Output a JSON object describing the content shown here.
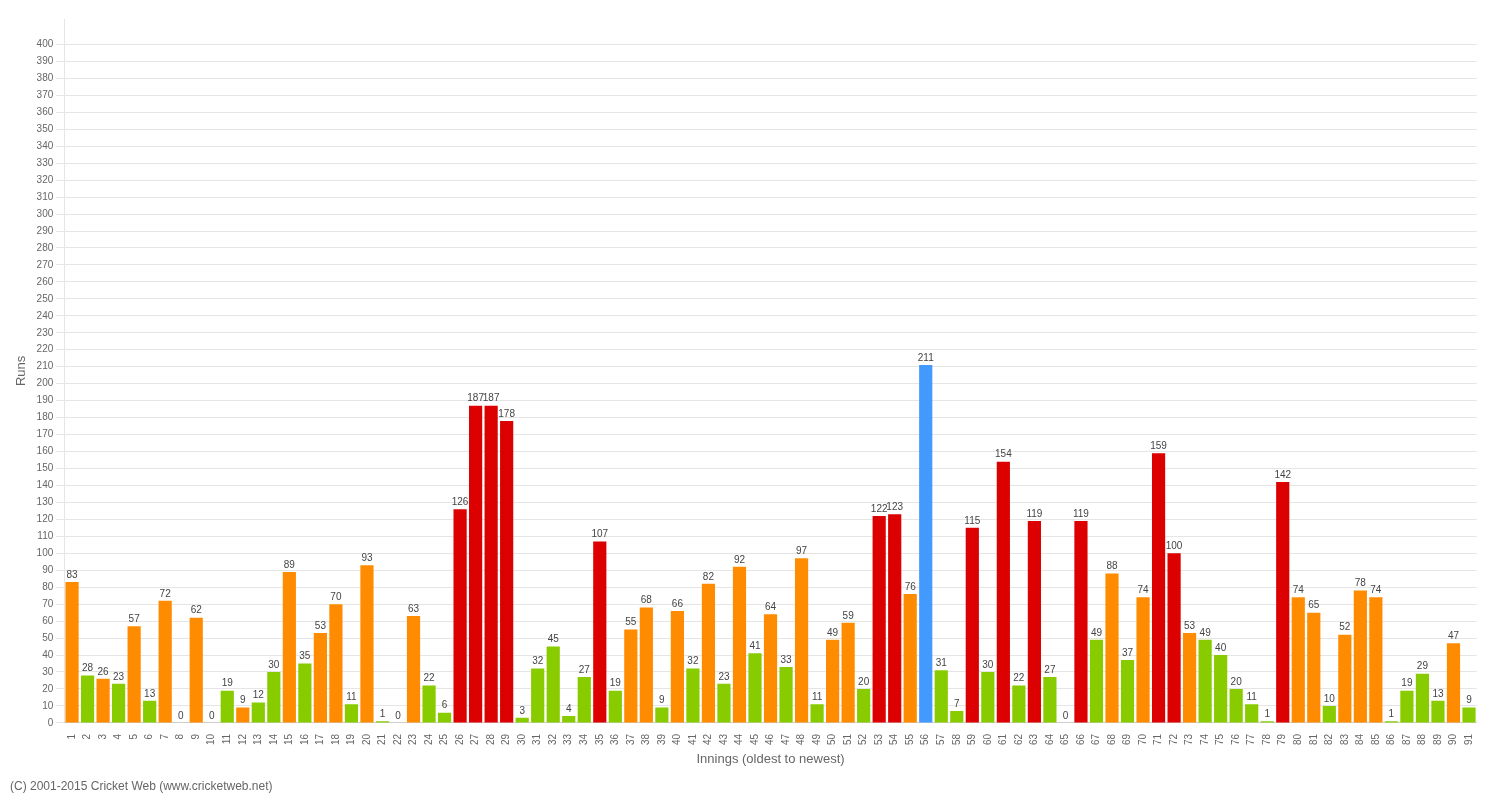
{
  "chart_data": {
    "type": "bar",
    "xlabel": "Innings (oldest to newest)",
    "ylabel": "Runs",
    "annotations": [
      "(C) 2001-2015 Cricket Web (www.cricketweb.net)"
    ],
    "categories": [
      "1",
      "2",
      "3",
      "4",
      "5",
      "6",
      "7",
      "8",
      "9",
      "10",
      "11",
      "12",
      "13",
      "14",
      "15",
      "16",
      "17",
      "18",
      "19",
      "20",
      "21",
      "22",
      "23",
      "24",
      "25",
      "26",
      "27",
      "28",
      "29",
      "30",
      "31",
      "32",
      "33",
      "34",
      "35",
      "36",
      "37",
      "38",
      "39",
      "40",
      "41",
      "42",
      "43",
      "44",
      "45",
      "46",
      "47",
      "48",
      "49",
      "50",
      "51",
      "52",
      "53",
      "54",
      "55",
      "56",
      "57",
      "58",
      "59",
      "60",
      "61",
      "62",
      "63",
      "64",
      "65",
      "66",
      "67",
      "68",
      "69",
      "70",
      "71",
      "72",
      "73",
      "74",
      "75",
      "76",
      "77",
      "78",
      "79",
      "80",
      "81",
      "82",
      "83",
      "84",
      "85",
      "86",
      "87",
      "88",
      "89",
      "90",
      "91"
    ],
    "values": [
      83,
      28,
      26,
      23,
      57,
      13,
      72,
      0,
      62,
      0,
      19,
      9,
      12,
      30,
      89,
      35,
      53,
      70,
      11,
      93,
      1,
      0,
      63,
      22,
      6,
      126,
      187,
      187,
      178,
      3,
      32,
      45,
      4,
      27,
      107,
      19,
      55,
      68,
      9,
      66,
      32,
      82,
      23,
      92,
      41,
      64,
      33,
      97,
      11,
      49,
      59,
      20,
      122,
      123,
      76,
      211,
      31,
      7,
      115,
      30,
      154,
      22,
      119,
      27,
      0,
      119,
      49,
      88,
      37,
      74,
      159,
      100,
      53,
      49,
      40,
      20,
      11,
      1,
      142,
      74,
      65,
      10,
      52,
      78,
      74,
      1,
      19,
      29,
      13,
      47,
      9
    ],
    "colors": [
      "#FF8C00",
      "#88CC00",
      "#FF8C00",
      "#88CC00",
      "#FF8C00",
      "#88CC00",
      "#FF8C00",
      "#88CC00",
      "#FF8C00",
      "#88CC00",
      "#88CC00",
      "#FF8C00",
      "#88CC00",
      "#88CC00",
      "#FF8C00",
      "#88CC00",
      "#FF8C00",
      "#FF8C00",
      "#88CC00",
      "#FF8C00",
      "#88CC00",
      "#88CC00",
      "#FF8C00",
      "#88CC00",
      "#88CC00",
      "#DD0000",
      "#DD0000",
      "#DD0000",
      "#DD0000",
      "#88CC00",
      "#88CC00",
      "#88CC00",
      "#88CC00",
      "#88CC00",
      "#DD0000",
      "#88CC00",
      "#FF8C00",
      "#FF8C00",
      "#88CC00",
      "#FF8C00",
      "#88CC00",
      "#FF8C00",
      "#88CC00",
      "#FF8C00",
      "#88CC00",
      "#FF8C00",
      "#88CC00",
      "#FF8C00",
      "#88CC00",
      "#FF8C00",
      "#FF8C00",
      "#88CC00",
      "#DD0000",
      "#DD0000",
      "#FF8C00",
      "#4499FF",
      "#88CC00",
      "#88CC00",
      "#DD0000",
      "#88CC00",
      "#DD0000",
      "#88CC00",
      "#DD0000",
      "#88CC00",
      "#88CC00",
      "#DD0000",
      "#88CC00",
      "#FF8C00",
      "#88CC00",
      "#FF8C00",
      "#DD0000",
      "#DD0000",
      "#FF8C00",
      "#88CC00",
      "#88CC00",
      "#88CC00",
      "#88CC00",
      "#88CC00",
      "#DD0000",
      "#FF8C00",
      "#FF8C00",
      "#88CC00",
      "#FF8C00",
      "#FF8C00",
      "#FF8C00",
      "#88CC00",
      "#88CC00",
      "#88CC00",
      "#88CC00",
      "#FF8C00",
      "#88CC00"
    ],
    "ylim": [
      0,
      415
    ],
    "yticks": [
      0,
      10,
      20,
      30,
      40,
      50,
      60,
      70,
      80,
      90,
      100,
      110,
      120,
      130,
      140,
      150,
      160,
      170,
      180,
      190,
      200,
      210,
      220,
      230,
      240,
      250,
      260,
      270,
      280,
      290,
      300,
      310,
      320,
      330,
      340,
      350,
      360,
      370,
      380,
      390,
      400
    ],
    "grid": true,
    "data_labels": true
  }
}
